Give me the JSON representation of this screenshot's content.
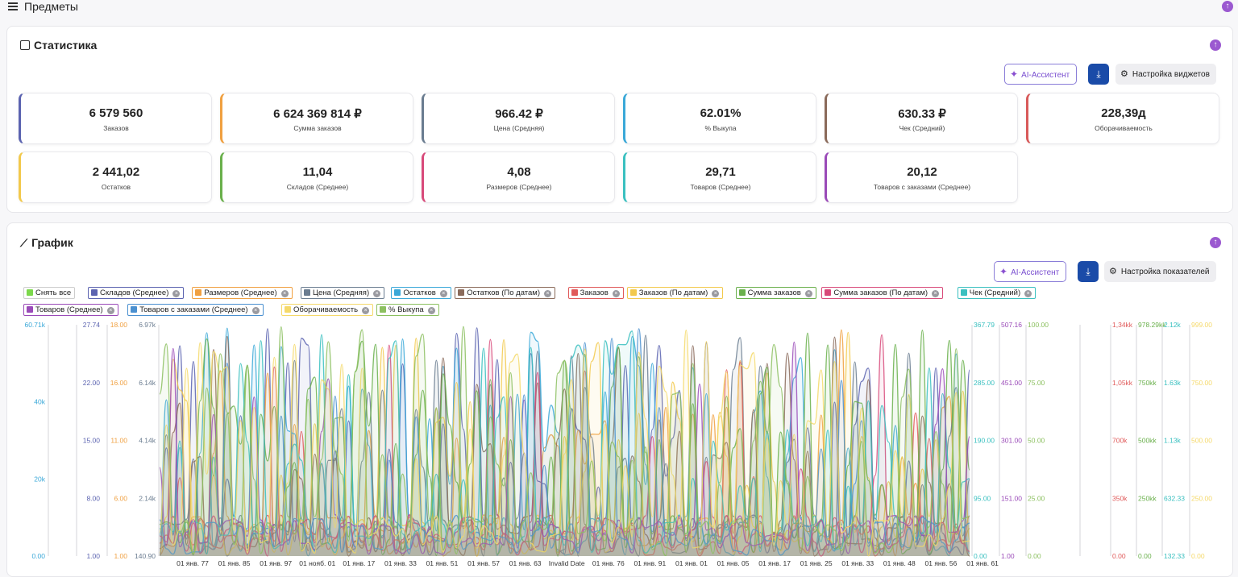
{
  "header": {
    "title": "Предметы"
  },
  "stats": {
    "title": "Статистика",
    "ai_label": "AI-Ассистент",
    "settings_label": "Настройка виджетов",
    "kpis": [
      {
        "value": "6 579 560",
        "label": "Заказов",
        "color": "#5b63b0"
      },
      {
        "value": "6 624 369 814 ₽",
        "label": "Сумма заказов",
        "color": "#f0a040"
      },
      {
        "value": "966.42 ₽",
        "label": "Цена (Средняя)",
        "color": "#6a7c90"
      },
      {
        "value": "62.01%",
        "label": "% Выкупа",
        "color": "#3aa8d8"
      },
      {
        "value": "630.33 ₽",
        "label": "Чек (Средний)",
        "color": "#8a6a5a"
      },
      {
        "value": "228,39д",
        "label": "Оборачиваемость",
        "color": "#d85a5a"
      },
      {
        "value": "2 441,02",
        "label": "Остатков",
        "color": "#f2c94c"
      },
      {
        "value": "11,04",
        "label": "Складов (Среднее)",
        "color": "#6ab04c"
      },
      {
        "value": "4,08",
        "label": "Размеров (Среднее)",
        "color": "#d84a7a"
      },
      {
        "value": "29,71",
        "label": "Товаров (Среднее)",
        "color": "#3ac0c0"
      },
      {
        "value": "20,12",
        "label": "Товаров с заказами (Среднее)",
        "color": "#9a4ab8"
      }
    ]
  },
  "chart_panel": {
    "title": "График",
    "ai_label": "AI-Ассистент",
    "settings_label": "Настройка показателей",
    "select_all": "Снять все",
    "legend": [
      {
        "name": "Складов (Среднее)",
        "color": "#5b63b0"
      },
      {
        "name": "Размеров (Среднее)",
        "color": "#f0a040"
      },
      {
        "name": "Цена (Средняя)",
        "color": "#6a7c90"
      },
      {
        "name": "Остатков",
        "color": "#3aa8d8"
      },
      {
        "name": "Остатков (По датам)",
        "color": "#8a6a5a"
      },
      {
        "name": "Заказов",
        "color": "#e05a5a"
      },
      {
        "name": "Заказов (По датам)",
        "color": "#f2c94c"
      },
      {
        "name": "Сумма заказов",
        "color": "#6ab04c"
      },
      {
        "name": "Сумма заказов (По датам)",
        "color": "#d84a7a"
      },
      {
        "name": "Чек (Средний)",
        "color": "#3ac0c0"
      },
      {
        "name": "Товаров (Среднее)",
        "color": "#9a4ab8"
      },
      {
        "name": "Товаров с заказами (Среднее)",
        "color": "#4a90d0"
      },
      {
        "name": "Оборачиваемость",
        "color": "#f5d96a"
      },
      {
        "name": "% Выкупа",
        "color": "#8cc060"
      }
    ]
  },
  "chart_data": {
    "type": "line",
    "x_ticks": [
      "01 янв. 77",
      "01 янв. 85",
      "01 янв. 97",
      "01 нояб. 01",
      "01 янв. 17",
      "01 янв. 33",
      "01 янв. 51",
      "01 янв. 57",
      "01 янв. 63",
      "Invalid Date",
      "01 янв. 76",
      "01 янв. 91",
      "01 янв. 01",
      "01 янв. 05",
      "01 янв. 17",
      "01 янв. 25",
      "01 янв. 33",
      "01 янв. 48",
      "01 янв. 56",
      "01 янв. 61"
    ],
    "left_axes": [
      {
        "color": "#3aa8d8",
        "ticks": [
          "60.71k",
          "40k",
          "20k",
          "0.00"
        ]
      },
      {
        "color": "#5b63b0",
        "ticks": [
          "27.74",
          "22.00",
          "15.00",
          "8.00",
          "1.00"
        ]
      },
      {
        "color": "#f0a040",
        "ticks": [
          "18.00",
          "16.00",
          "11.00",
          "6.00",
          "1.00"
        ]
      },
      {
        "color": "#6a7c90",
        "ticks": [
          "6.97k",
          "6.14k",
          "4.14k",
          "2.14k",
          "140.90"
        ]
      }
    ],
    "right_axes": [
      {
        "color": "#3ac0c0",
        "ticks": [
          "367.79",
          "285.00",
          "190.00",
          "95.00",
          "0.00"
        ]
      },
      {
        "color": "#9a4ab8",
        "ticks": [
          "507.16",
          "451.00",
          "301.00",
          "151.00",
          "1.00"
        ]
      },
      {
        "color": "#8cc060",
        "ticks": [
          "100.00",
          "75.00",
          "50.00",
          "25.00",
          "0.00"
        ]
      },
      {
        "color": "#e05a5a",
        "ticks": [
          "1,34kk",
          "1,05kk",
          "700k",
          "350k",
          "0.00"
        ]
      },
      {
        "color": "#6ab04c",
        "ticks": [
          "978.29kk",
          "750kk",
          "500kk",
          "250kk",
          "0.00"
        ]
      },
      {
        "color": "#3ac0c0",
        "ticks": [
          "2.12k",
          "1.63k",
          "1.13k",
          "632.33",
          "132.33"
        ]
      },
      {
        "color": "#f5d96a",
        "ticks": [
          "999.00",
          "750.00",
          "500.00",
          "250.00",
          "0.00"
        ]
      }
    ]
  }
}
